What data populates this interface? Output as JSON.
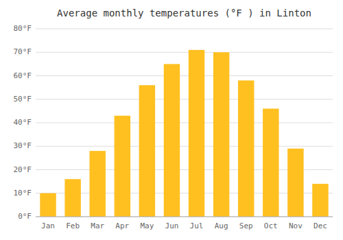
{
  "chart_data": {
    "type": "bar",
    "title": "Average monthly temperatures (°F ) in Linton",
    "categories": [
      "Jan",
      "Feb",
      "Mar",
      "Apr",
      "May",
      "Jun",
      "Jul",
      "Aug",
      "Sep",
      "Oct",
      "Nov",
      "Dec"
    ],
    "values": [
      10,
      16,
      28,
      43,
      56,
      65,
      71,
      70,
      58,
      46,
      29,
      14
    ],
    "color": "#FFC020",
    "ylim": [
      0,
      80
    ],
    "yticks": [
      {
        "value": 0,
        "label": "0°F"
      },
      {
        "value": 10,
        "label": "10°F"
      },
      {
        "value": 20,
        "label": "20°F"
      },
      {
        "value": 30,
        "label": "30°F"
      },
      {
        "value": 40,
        "label": "40°F"
      },
      {
        "value": 50,
        "label": "50°F"
      },
      {
        "value": 60,
        "label": "60°F"
      },
      {
        "value": 70,
        "label": "70°F"
      },
      {
        "value": 80,
        "label": "80°F"
      }
    ],
    "grid": true
  }
}
